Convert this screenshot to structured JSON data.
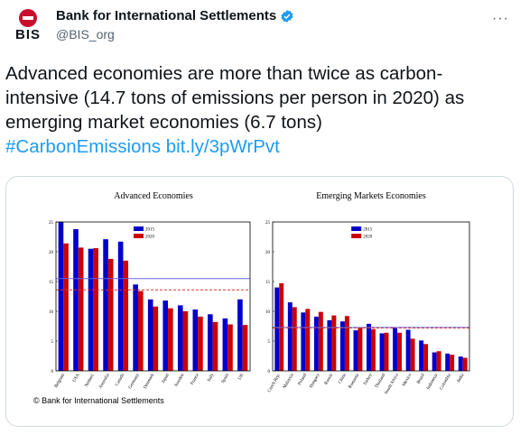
{
  "author": {
    "logo_text": "BIS",
    "display_name": "Bank for International Settlements",
    "handle": "@BIS_org",
    "more_label": "···"
  },
  "tweet": {
    "text": "Advanced economies are more than twice as carbon-intensive (14.7 tons of emissions per person in 2020) as emerging market economies (6.7 tons)",
    "hashtag": "#CarbonEmissions",
    "link": "bit.ly/3pWrPvt"
  },
  "colors": {
    "series_2015": "#0000cc",
    "series_2020": "#cc0000",
    "link": "#1d9bf0",
    "verified": "#1d9bf0"
  },
  "image": {
    "copyright": "© Bank for International Settlements"
  },
  "chart_data": [
    {
      "type": "bar",
      "title": "Advanced Economies",
      "categories": [
        "Belgium",
        "USA",
        "Netherl.",
        "Australia",
        "Canada",
        "Germany",
        "Denmark",
        "Japan",
        "Sweden",
        "France",
        "Italy",
        "Spain",
        "UK"
      ],
      "series": [
        {
          "name": "2015",
          "values": [
            25,
            23.8,
            20.5,
            22.1,
            21.7,
            14.5,
            12,
            11.8,
            11,
            10.3,
            9.5,
            8.8,
            12
          ]
        },
        {
          "name": "2020",
          "values": [
            21.4,
            20.7,
            20.6,
            18.8,
            18.5,
            13.4,
            10.8,
            10.5,
            10,
            9.1,
            8.2,
            7.8,
            7.7
          ]
        }
      ],
      "reference_lines": [
        15.5,
        13.6
      ],
      "ylim": [
        0,
        25
      ],
      "yticks": [
        0,
        5,
        10,
        15,
        20,
        25
      ],
      "legend": "top-center"
    },
    {
      "type": "bar",
      "title": "Emerging Markets Economies",
      "categories": [
        "Czech Rep.",
        "Malaysia",
        "Poland",
        "Hungary",
        "Russia",
        "China",
        "Romania",
        "Turkey",
        "Thailand",
        "South Africa",
        "Mexico",
        "Brazil",
        "Indonesia",
        "Colombia",
        "India"
      ],
      "series": [
        {
          "name": "2015",
          "values": [
            14,
            11.5,
            9.8,
            9.1,
            8.5,
            8.3,
            6.8,
            7.9,
            6.3,
            7.3,
            6.9,
            5.1,
            3.1,
            2.9,
            2.4
          ]
        },
        {
          "name": "2020",
          "values": [
            14.7,
            10.7,
            10.4,
            9.9,
            9.3,
            9.2,
            7.3,
            7,
            6.4,
            6.4,
            5.4,
            4.5,
            3.3,
            2.7,
            2.2
          ]
        }
      ],
      "reference_lines": [
        7.3,
        7.2
      ],
      "ylim": [
        0,
        25
      ],
      "yticks": [
        0,
        5,
        10,
        15,
        20,
        25
      ],
      "legend": "top-center"
    }
  ]
}
